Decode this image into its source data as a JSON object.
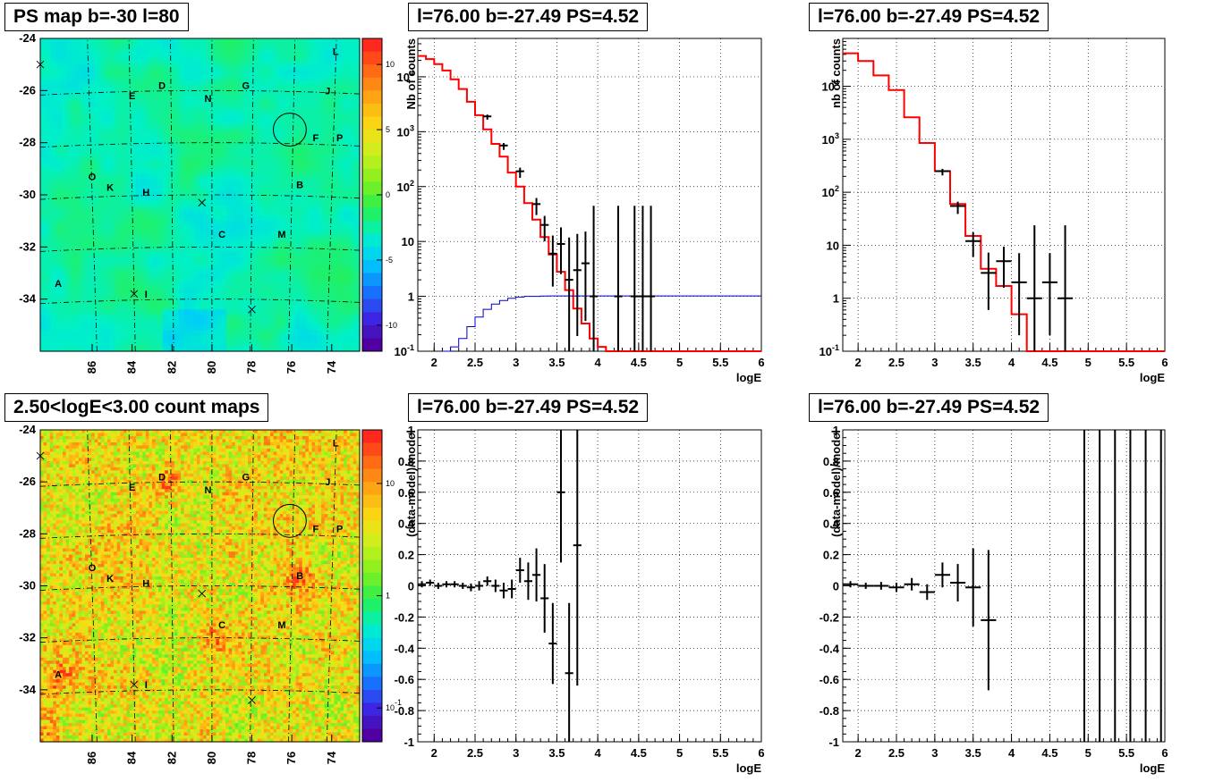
{
  "chart_data": [
    {
      "type": "heatmap",
      "title": "PS map b=-30 l=80",
      "x_ticks": [
        "86",
        "84",
        "82",
        "80",
        "78",
        "76",
        "74"
      ],
      "y_ticks": [
        "-24",
        "-26",
        "-28",
        "-30",
        "-32",
        "-34"
      ],
      "xlim": [
        88.6,
        72.6
      ],
      "ylim": [
        -36.0,
        -24.0
      ],
      "colorbar": {
        "range": [
          -12,
          12
        ],
        "ticks": [
          "10",
          "5",
          "0",
          "-5",
          "-10"
        ]
      },
      "grid": true,
      "sources": [
        {
          "label": "L",
          "x": 73.8,
          "y": -24.5
        },
        {
          "label": "D",
          "x": 82.5,
          "y": -25.8
        },
        {
          "label": "G",
          "x": 78.3,
          "y": -25.8
        },
        {
          "label": "J",
          "x": 74.2,
          "y": -26.0
        },
        {
          "label": "E",
          "x": 84.0,
          "y": -26.2
        },
        {
          "label": "N",
          "x": 80.2,
          "y": -26.3
        },
        {
          "label": "F",
          "x": 74.8,
          "y": -27.8
        },
        {
          "label": "P",
          "x": 73.6,
          "y": -27.8
        },
        {
          "label": "O",
          "x": 86.0,
          "y": -29.3
        },
        {
          "label": "K",
          "x": 85.1,
          "y": -29.7
        },
        {
          "label": "H",
          "x": 83.3,
          "y": -29.9
        },
        {
          "label": "B",
          "x": 75.6,
          "y": -29.6
        },
        {
          "label": "C",
          "x": 79.5,
          "y": -31.5
        },
        {
          "label": "M",
          "x": 76.5,
          "y": -31.5
        },
        {
          "label": "A",
          "x": 87.7,
          "y": -33.4
        },
        {
          "label": "I",
          "x": 83.3,
          "y": -33.8
        }
      ],
      "crosses": [
        {
          "x": 88.6,
          "y": -25.0
        },
        {
          "x": 80.5,
          "y": -30.3
        },
        {
          "x": 83.9,
          "y": -33.8
        },
        {
          "x": 78.0,
          "y": -34.4
        }
      ],
      "circle": {
        "x": 76.1,
        "y": -27.5,
        "r": 0.55
      }
    },
    {
      "type": "line",
      "title": "l=76.00 b=-27.49 PS=4.52",
      "xlabel": "logE",
      "ylabel": "Nb of counts",
      "log_y": true,
      "xlim": [
        1.8,
        6.0
      ],
      "ylim": [
        0.1,
        50000
      ],
      "x_ticks": [
        "2",
        "2.5",
        "3",
        "3.5",
        "4",
        "4.5",
        "5",
        "5.5",
        "6"
      ],
      "y_ticks": [
        "10^{4}",
        "10^{3}",
        "10^{2}",
        "10",
        "1",
        "10^{-1}"
      ],
      "grid": true,
      "series": [
        {
          "role": "model",
          "color": "#ff0000",
          "edges": [
            1.8,
            1.9,
            2.0,
            2.1,
            2.2,
            2.3,
            2.4,
            2.5,
            2.6,
            2.7,
            2.8,
            2.9,
            3.0,
            3.1,
            3.2,
            3.3,
            3.4,
            3.5,
            3.6,
            3.7,
            3.8,
            3.9,
            4.0,
            4.1,
            4.2,
            4.3,
            6.0
          ],
          "values": [
            24000,
            21000,
            17000,
            13000,
            9000,
            6000,
            3500,
            2000,
            1100,
            600,
            350,
            180,
            100,
            50,
            25,
            12,
            5.8,
            2.8,
            1.3,
            0.6,
            0.32,
            0.17,
            0.12,
            0.1,
            0.1,
            0.1
          ]
        },
        {
          "role": "background",
          "color": "#0000cc",
          "edges": [
            2.1,
            2.2,
            2.3,
            2.4,
            2.5,
            2.6,
            2.7,
            2.8,
            2.9,
            3.0,
            3.1,
            3.2,
            3.3,
            3.4,
            6.0
          ],
          "values": [
            0.1,
            0.12,
            0.17,
            0.28,
            0.42,
            0.58,
            0.72,
            0.84,
            0.92,
            0.97,
            1.0,
            1.0,
            1.01,
            1.02
          ]
        },
        {
          "role": "data",
          "color": "#000000",
          "points": [
            [
              2.65,
              1900
            ],
            [
              2.85,
              560
            ],
            [
              3.05,
              190
            ],
            [
              3.25,
              48
            ],
            [
              3.35,
              20
            ],
            [
              3.45,
              6
            ],
            [
              3.55,
              9
            ],
            [
              3.65,
              2
            ],
            [
              3.75,
              3
            ],
            [
              3.85,
              4
            ],
            [
              3.95,
              1
            ],
            [
              4.25,
              1
            ],
            [
              4.45,
              1
            ],
            [
              4.55,
              1
            ],
            [
              4.65,
              1
            ]
          ],
          "err": [
            [
              2.65,
              0.06
            ],
            [
              2.85,
              0.08
            ],
            [
              3.05,
              0.12
            ],
            [
              3.25,
              0.2
            ],
            [
              3.35,
              0.3
            ],
            [
              3.45,
              0.6
            ],
            [
              3.55,
              0.55
            ],
            [
              3.65,
              1.4
            ],
            [
              3.75,
              1.2
            ],
            [
              3.85,
              1.05
            ],
            [
              3.95,
              3
            ],
            [
              4.25,
              3
            ],
            [
              4.45,
              3
            ],
            [
              4.55,
              3
            ],
            [
              4.65,
              3
            ]
          ]
        }
      ]
    },
    {
      "type": "line",
      "title": "l=76.00 b=-27.49 PS=4.52",
      "xlabel": "logE",
      "ylabel": "nb of counts",
      "log_y": true,
      "xlim": [
        1.8,
        6.0
      ],
      "ylim": [
        0.1,
        80000
      ],
      "x_ticks": [
        "2",
        "2.5",
        "3",
        "3.5",
        "4",
        "4.5",
        "5",
        "5.5",
        "6"
      ],
      "y_ticks": [
        "10^{4}",
        "10^{3}",
        "10^{2}",
        "10",
        "1",
        "10^{-1}"
      ],
      "grid": true,
      "series": [
        {
          "role": "model",
          "color": "#ff0000",
          "edges": [
            1.8,
            2.0,
            2.2,
            2.4,
            2.6,
            2.8,
            3.0,
            3.2,
            3.4,
            3.6,
            3.8,
            4.0,
            4.2,
            6.0
          ],
          "values": [
            42000,
            30000,
            16000,
            8500,
            2600,
            850,
            250,
            60,
            15,
            3.6,
            1.7,
            0.5,
            0.1
          ]
        },
        {
          "role": "data",
          "color": "#000000",
          "points": [
            [
              3.1,
              250
            ],
            [
              3.3,
              55
            ],
            [
              3.5,
              12
            ],
            [
              3.7,
              3
            ],
            [
              3.9,
              5
            ],
            [
              4.1,
              2
            ],
            [
              4.3,
              1
            ],
            [
              4.5,
              2
            ],
            [
              4.7,
              1
            ]
          ],
          "err": [
            [
              3.1,
              0.08
            ],
            [
              3.3,
              0.15
            ],
            [
              3.5,
              0.3
            ],
            [
              3.7,
              0.7
            ],
            [
              3.9,
              0.5
            ],
            [
              4.1,
              1.0
            ],
            [
              4.3,
              2.5
            ],
            [
              4.5,
              1.0
            ],
            [
              4.7,
              2.5
            ]
          ]
        }
      ]
    },
    {
      "type": "heatmap",
      "title": "2.50<logE<3.00 count maps",
      "x_ticks": [
        "86",
        "84",
        "82",
        "80",
        "78",
        "76",
        "74"
      ],
      "y_ticks": [
        "-24",
        "-26",
        "-28",
        "-30",
        "-32",
        "-34"
      ],
      "xlim": [
        88.6,
        72.6
      ],
      "ylim": [
        -36.0,
        -24.0
      ],
      "colorbar": {
        "log": true,
        "range": [
          0.05,
          30
        ],
        "ticks": [
          "10",
          "1",
          "10^{-1}"
        ]
      },
      "grid": true,
      "hotspots": [
        {
          "label": "B",
          "x": 75.6,
          "y": -29.7
        },
        {
          "label": "D",
          "x": 82.3,
          "y": -25.8
        },
        {
          "label": "C",
          "x": 80.0,
          "y": -32.0
        },
        {
          "label": "A",
          "x": 87.7,
          "y": -33.4
        }
      ]
    },
    {
      "type": "scatter",
      "title": "l=76.00 b=-27.49 PS=4.52",
      "xlabel": "logE",
      "ylabel": "(data-model)/model",
      "xlim": [
        1.8,
        6.0
      ],
      "ylim": [
        -1,
        1
      ],
      "x_ticks": [
        "2",
        "2.5",
        "3",
        "3.5",
        "4",
        "4.5",
        "5",
        "5.5",
        "6"
      ],
      "y_ticks": [
        "1",
        "0.8",
        "0.6",
        "0.4",
        "0.2",
        "0",
        "-0.2",
        "-0.4",
        "-0.6",
        "-0.8",
        "-1"
      ],
      "grid": true,
      "points": [
        [
          1.85,
          0.01,
          0.02
        ],
        [
          1.95,
          0.02,
          0.02
        ],
        [
          2.05,
          0.0,
          0.02
        ],
        [
          2.15,
          0.01,
          0.02
        ],
        [
          2.25,
          0.01,
          0.02
        ],
        [
          2.35,
          0.0,
          0.02
        ],
        [
          2.45,
          -0.01,
          0.025
        ],
        [
          2.55,
          0.0,
          0.03
        ],
        [
          2.65,
          0.03,
          0.03
        ],
        [
          2.75,
          0.0,
          0.04
        ],
        [
          2.85,
          -0.03,
          0.05
        ],
        [
          2.95,
          -0.02,
          0.06
        ],
        [
          3.05,
          0.1,
          0.08
        ],
        [
          3.15,
          0.03,
          0.12
        ],
        [
          3.25,
          0.07,
          0.17
        ],
        [
          3.35,
          -0.08,
          0.22
        ],
        [
          3.45,
          -0.37,
          0.26
        ],
        [
          3.55,
          0.6,
          0.45
        ],
        [
          3.65,
          -0.56,
          0.45
        ],
        [
          3.75,
          0.26,
          0.9
        ]
      ]
    },
    {
      "type": "scatter",
      "title": "l=76.00 b=-27.49 PS=4.52",
      "xlabel": "logE",
      "ylabel": "(data-model)/model",
      "xlim": [
        1.8,
        6.0
      ],
      "ylim": [
        -1,
        1
      ],
      "x_ticks": [
        "2",
        "2.5",
        "3",
        "3.5",
        "4",
        "4.5",
        "5",
        "5.5",
        "6"
      ],
      "y_ticks": [
        "1",
        "0.8",
        "0.6",
        "0.4",
        "0.2",
        "0",
        "-0.2",
        "-0.4",
        "-0.6",
        "-0.8",
        "-1"
      ],
      "grid": true,
      "points": [
        [
          1.9,
          0.01,
          0.02
        ],
        [
          2.1,
          0.0,
          0.02
        ],
        [
          2.3,
          0.0,
          0.025
        ],
        [
          2.5,
          -0.01,
          0.03
        ],
        [
          2.7,
          0.01,
          0.04
        ],
        [
          2.9,
          -0.04,
          0.05
        ],
        [
          3.1,
          0.07,
          0.08
        ],
        [
          3.3,
          0.02,
          0.12
        ],
        [
          3.5,
          -0.01,
          0.25
        ],
        [
          3.7,
          -0.22,
          0.45
        ]
      ],
      "vlines": [
        4.95,
        5.15,
        5.35,
        5.55,
        5.75,
        5.95
      ]
    }
  ]
}
